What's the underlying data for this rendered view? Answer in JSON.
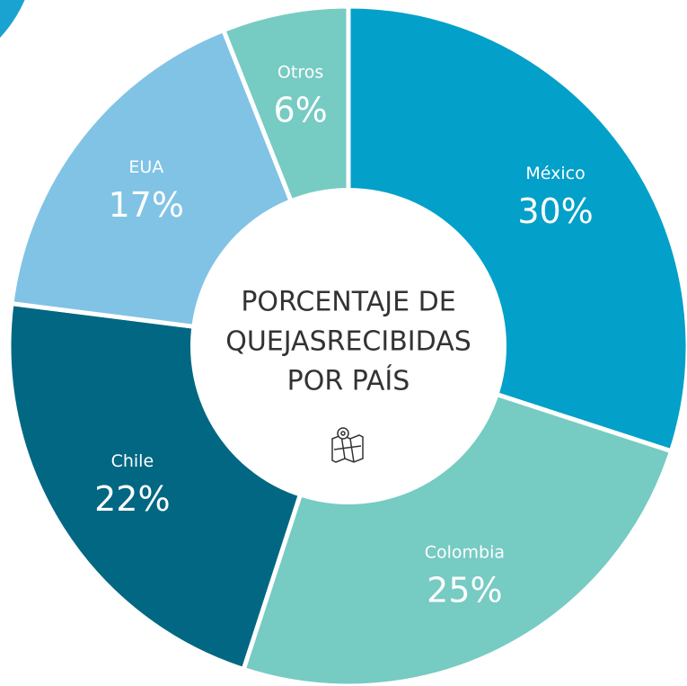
{
  "chart_data": {
    "type": "donut",
    "title": [
      "PORCENTAJE DE",
      "QUEJASRECIBIDAS",
      "POR PAÍS"
    ],
    "categories": [
      "México",
      "Colombia",
      "Chile",
      "EUA",
      "Otros"
    ],
    "values": [
      30,
      25,
      22,
      17,
      6
    ],
    "value_labels": [
      "30%",
      "25%",
      "22%",
      "17%",
      "6%"
    ],
    "colors": [
      "#03a0c9",
      "#76cbc3",
      "#026783",
      "#80c3e5",
      "#76cbc3"
    ]
  }
}
